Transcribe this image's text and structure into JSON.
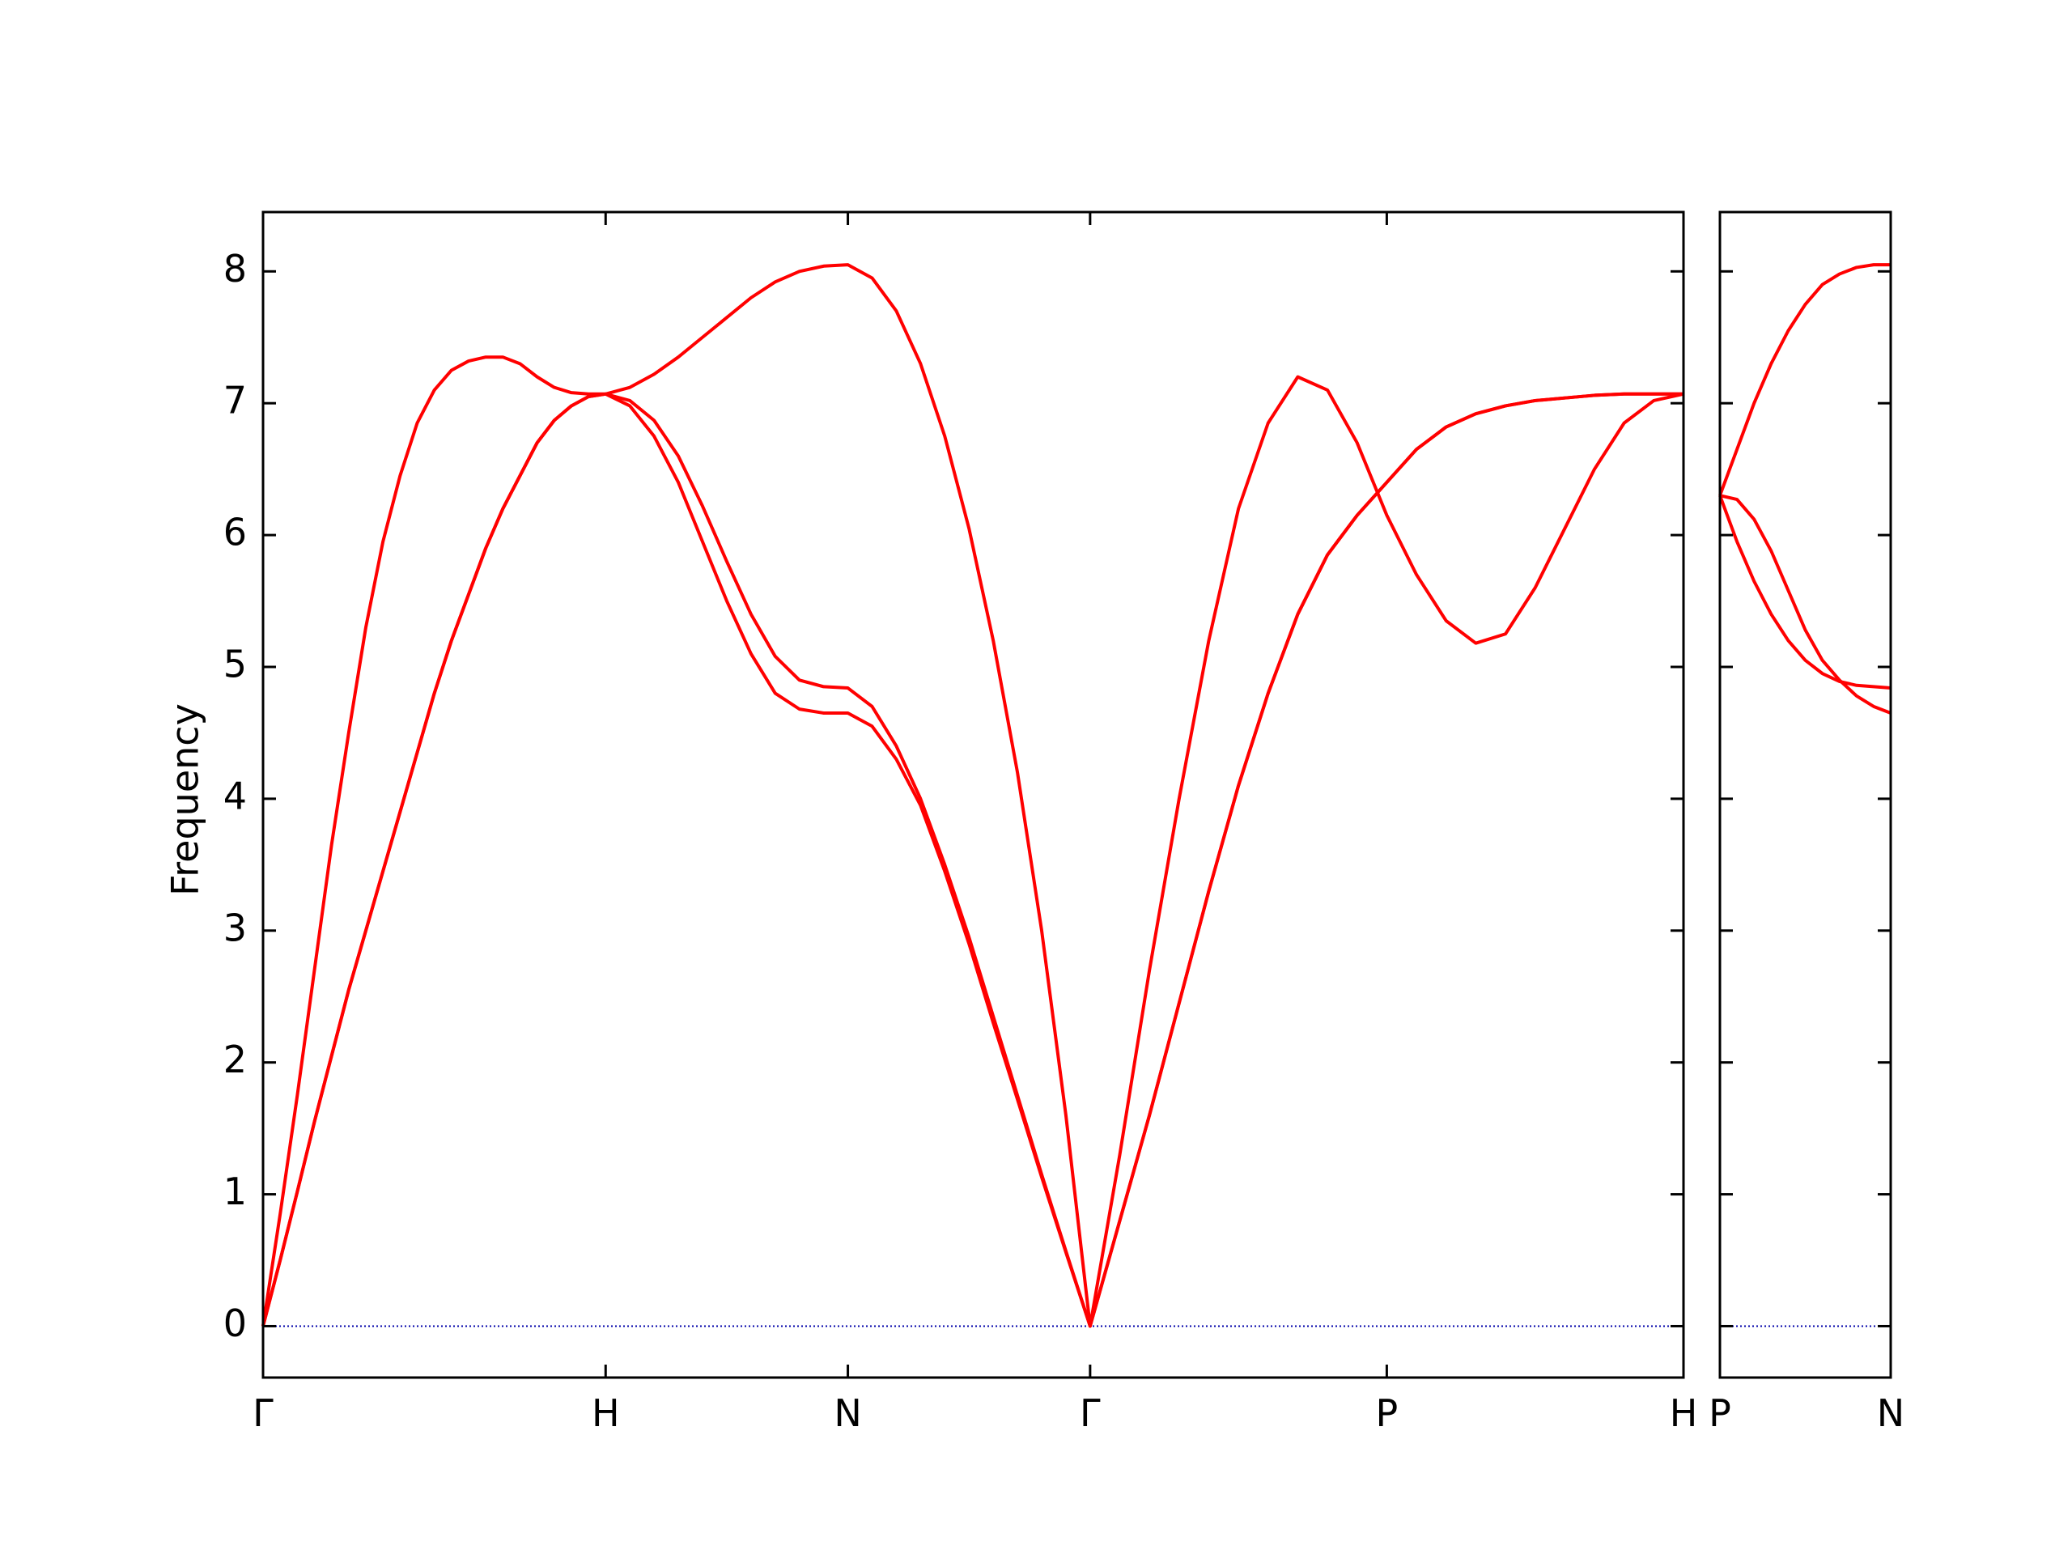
{
  "chart_data": [
    {
      "type": "line",
      "ylabel": "Frequency",
      "x": [
        0,
        0.05,
        0.1,
        0.15,
        0.2,
        0.25,
        0.3,
        0.35,
        0.4,
        0.45,
        0.5,
        0.55,
        0.6,
        0.65,
        0.7,
        0.75,
        0.8,
        0.85,
        0.9,
        0.95,
        1.0,
        1.0707,
        1.1414,
        1.2121,
        1.2828,
        1.3536,
        1.4243,
        1.495,
        1.5657,
        1.6364,
        1.7071,
        1.7778,
        1.8485,
        1.9192,
        1.9899,
        2.0607,
        2.1314,
        2.2021,
        2.2728,
        2.3435,
        2.4142,
        2.5008,
        2.5874,
        2.674,
        2.7606,
        2.8472,
        2.9338,
        3.0204,
        3.107,
        3.1936,
        3.2802,
        3.3668,
        3.4534,
        3.54,
        3.6266,
        3.7132,
        3.7998,
        3.8864,
        3.973,
        4.0596,
        4.1463
      ],
      "series": [
        {
          "color": "#ff0000",
          "values": [
            0,
            0.5,
            1.02,
            1.55,
            2.05,
            2.55,
            3.0,
            3.45,
            3.9,
            4.35,
            4.8,
            5.2,
            5.55,
            5.9,
            6.2,
            6.45,
            6.7,
            6.87,
            6.98,
            7.05,
            7.07,
            6.98,
            6.75,
            6.4,
            5.95,
            5.5,
            5.1,
            4.8,
            4.68,
            4.65,
            4.65,
            4.55,
            4.3,
            3.95,
            3.45,
            2.9,
            2.3,
            1.72,
            1.13,
            0.56,
            0,
            0.8,
            1.6,
            2.45,
            3.3,
            4.1,
            4.8,
            5.4,
            5.85,
            6.15,
            6.4,
            6.65,
            6.82,
            6.92,
            6.98,
            7.02,
            7.04,
            7.06,
            7.07,
            7.07,
            7.07
          ]
        },
        {
          "color": "#ff0000",
          "values": [
            0,
            0.5,
            1.02,
            1.55,
            2.05,
            2.55,
            3.0,
            3.45,
            3.9,
            4.35,
            4.8,
            5.2,
            5.55,
            5.9,
            6.2,
            6.45,
            6.7,
            6.87,
            6.98,
            7.05,
            7.07,
            7.02,
            6.87,
            6.6,
            6.22,
            5.8,
            5.4,
            5.08,
            4.9,
            4.85,
            4.84,
            4.7,
            4.4,
            4.0,
            3.5,
            2.95,
            2.35,
            1.75,
            1.15,
            0.57,
            0,
            0.8,
            1.6,
            2.45,
            3.3,
            4.1,
            4.8,
            5.4,
            5.85,
            6.15,
            6.4,
            6.65,
            6.82,
            6.92,
            6.98,
            7.02,
            7.04,
            7.06,
            7.07,
            7.07,
            7.07
          ]
        },
        {
          "color": "#ff0000",
          "values": [
            0,
            0.85,
            1.75,
            2.7,
            3.65,
            4.5,
            5.3,
            5.95,
            6.45,
            6.85,
            7.1,
            7.25,
            7.32,
            7.35,
            7.35,
            7.3,
            7.2,
            7.12,
            7.08,
            7.07,
            7.07,
            7.12,
            7.22,
            7.35,
            7.5,
            7.65,
            7.8,
            7.92,
            8.0,
            8.04,
            8.05,
            7.95,
            7.7,
            7.3,
            6.75,
            6.05,
            5.2,
            4.2,
            3.0,
            1.6,
            0,
            1.3,
            2.7,
            4.0,
            5.2,
            6.2,
            6.85,
            7.2,
            7.1,
            6.7,
            6.15,
            5.7,
            5.35,
            5.18,
            5.25,
            5.6,
            6.05,
            6.5,
            6.85,
            7.02,
            7.07
          ]
        }
      ],
      "xlim": [
        0,
        4.1463
      ],
      "xticks": [
        {
          "value": 0,
          "label": "Γ"
        },
        {
          "value": 1,
          "label": "H"
        },
        {
          "value": 1.7071,
          "label": "N"
        },
        {
          "value": 2.4142,
          "label": "Γ"
        },
        {
          "value": 3.2802,
          "label": "P"
        },
        {
          "value": 4.1463,
          "label": "H"
        }
      ],
      "ylim": [
        -0.39,
        8.45
      ],
      "yticks": [
        0,
        1,
        2,
        3,
        4,
        5,
        6,
        7,
        8
      ],
      "ytick_labels": true,
      "hline": {
        "y": 0,
        "color": "#0000aa"
      }
    },
    {
      "type": "line",
      "x": [
        4.1463,
        4.1963,
        4.2463,
        4.2963,
        4.3463,
        4.3963,
        4.4463,
        4.4963,
        4.5463,
        4.5963,
        4.6463
      ],
      "series": [
        {
          "color": "#ff0000",
          "values": [
            6.3,
            6.65,
            7.0,
            7.3,
            7.55,
            7.75,
            7.9,
            7.98,
            8.03,
            8.05,
            8.05
          ]
        },
        {
          "color": "#ff0000",
          "values": [
            6.3,
            5.95,
            5.65,
            5.4,
            5.2,
            5.05,
            4.95,
            4.89,
            4.86,
            4.85,
            4.84
          ]
        },
        {
          "color": "#ff0000",
          "values": [
            6.3,
            6.27,
            6.12,
            5.88,
            5.58,
            5.28,
            5.05,
            4.9,
            4.78,
            4.7,
            4.65
          ]
        }
      ],
      "xlim": [
        4.1463,
        4.6463
      ],
      "xticks": [
        {
          "value": 4.1463,
          "label": "P"
        },
        {
          "value": 4.6463,
          "label": "N"
        }
      ],
      "ylim": [
        -0.39,
        8.45
      ],
      "yticks": [
        0,
        1,
        2,
        3,
        4,
        5,
        6,
        7,
        8
      ],
      "ytick_labels": false,
      "hline": {
        "y": 0,
        "color": "#0000aa"
      }
    }
  ]
}
